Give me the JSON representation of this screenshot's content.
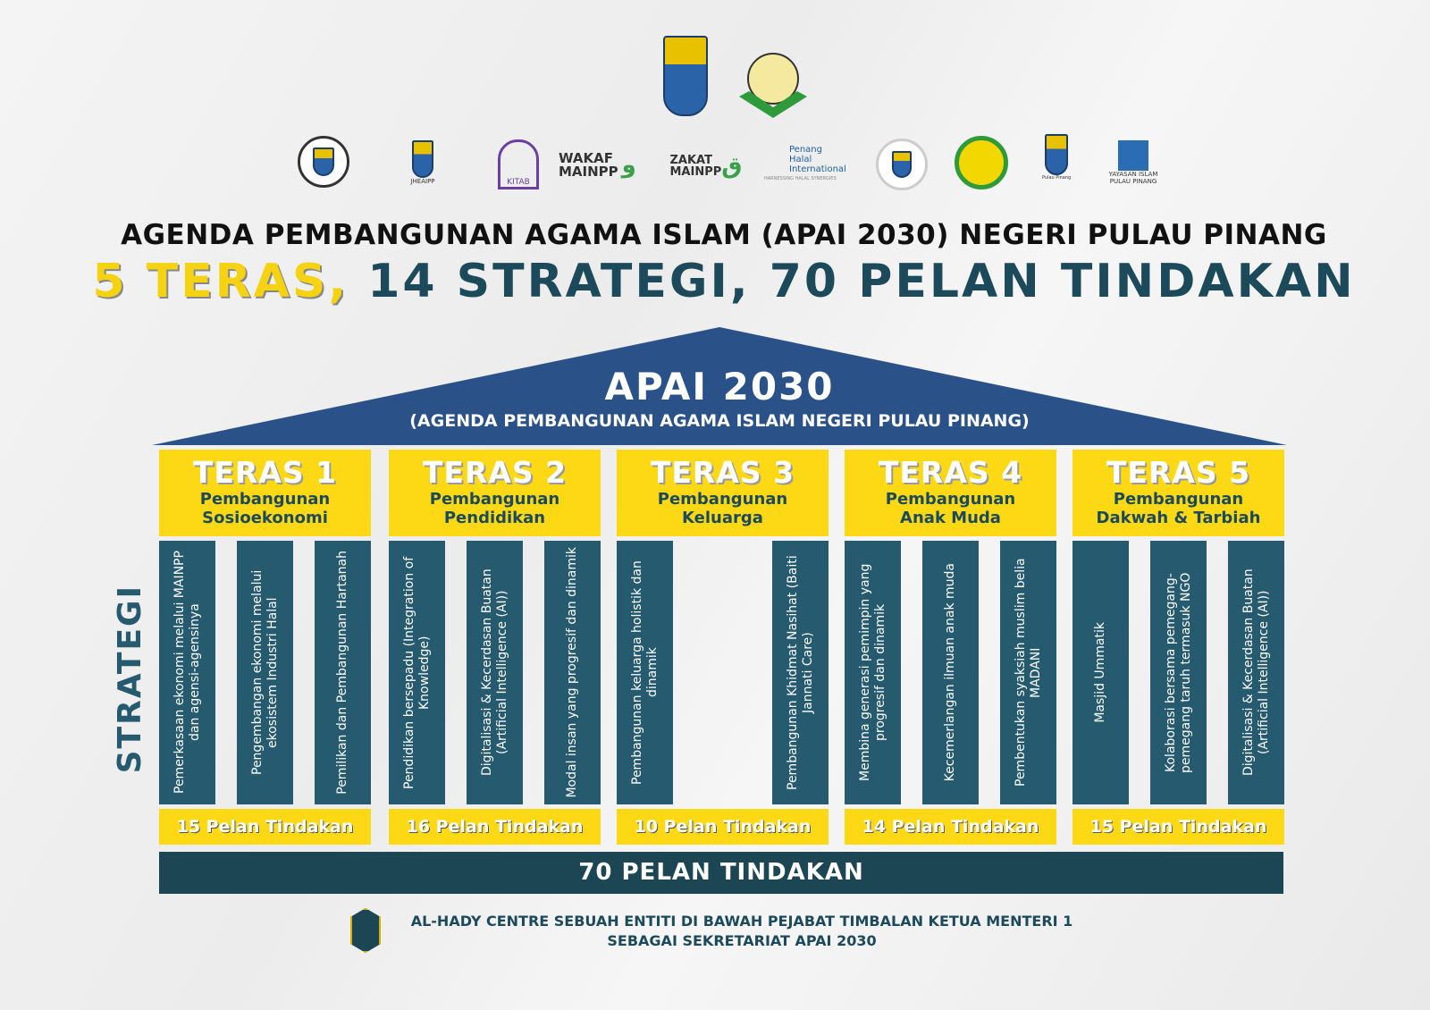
{
  "logos": {
    "top": [
      "Penang state crest",
      "Majlis Agama Islam Pulau Pinang"
    ],
    "row": [
      "Pejabat Timbalan Ketua Menteri (I) Pulau Pinang",
      "Jabatan Hal Ehwal Agama Islam Pulau Pinang",
      "KITAB",
      "WAKAF MAINPP",
      "ZAKAT MAINPP",
      "Penang Halal International",
      "HARNESSING HALAL SYNERGIES",
      "Jabatan Mufti",
      "Majlis seal",
      "Jabatan Kehakiman Syariah Pulau Pinang",
      "YAYASAN ISLAM PULAU PINANG"
    ]
  },
  "headline": "AGENDA PEMBANGUNAN AGAMA ISLAM (APAI 2030) NEGERI PULAU PINANG",
  "subheadline": {
    "teras": "5 TERAS,",
    "strategi": "14 STRATEGI,",
    "pelan": "70 PELAN TINDAKAN"
  },
  "roof": {
    "title": "APAI 2030",
    "subtitle": "(AGENDA PEMBANGUNAN AGAMA ISLAM NEGERI PULAU PINANG)"
  },
  "side_label": "STRATEGI",
  "colors": {
    "navy": "#2b5288",
    "yellow": "#fdd915",
    "teal": "#265a6e",
    "dark_teal": "#1c4654"
  },
  "teras": [
    {
      "title": "TERAS 1",
      "subtitle": [
        "Pembangunan",
        "Sosioekonomi"
      ],
      "strategies": [
        "Pemerkasaan ekonomi melalui MAINPP dan agensi-agensinya",
        "Pengembangan ekonomi melalui ekosistem Industri Halal",
        "Pemilikan dan Pembangunan Hartanah"
      ],
      "pelan": "15 Pelan Tindakan"
    },
    {
      "title": "TERAS 2",
      "subtitle": [
        "Pembangunan",
        "Pendidikan"
      ],
      "strategies": [
        "Pendidikan bersepadu (Integration of Knowledge)",
        "Digitalisasi & Kecerdasan Buatan (Artificial Intelligence (AI))",
        "Modal insan yang progresif dan dinamik"
      ],
      "pelan": "16 Pelan Tindakan"
    },
    {
      "title": "TERAS 3",
      "subtitle": [
        "Pembangunan",
        "Keluarga"
      ],
      "strategies": [
        "Pembangunan keluarga holistik dan dinamik",
        "Pembangunan Khidmat Nasihat (Baiti Jannati Care)"
      ],
      "pelan": "10 Pelan Tindakan"
    },
    {
      "title": "TERAS 4",
      "subtitle": [
        "Pembangunan",
        "Anak Muda"
      ],
      "strategies": [
        "Membina generasi pemimpin yang progresif dan dinamik",
        "Kecemerlangan ilmuan anak muda",
        "Pembentukan syaksiah muslim belia MADANI"
      ],
      "pelan": "14 Pelan Tindakan"
    },
    {
      "title": "TERAS 5",
      "subtitle": [
        "Pembangunan",
        "Dakwah & Tarbiah"
      ],
      "strategies": [
        "Masjid Ummatik",
        "Kolaborasi bersama pemegang-pemegang taruh termasuk NGO",
        "Digitalisasi & Kecerdasan Buatan (Artificial Intelligence (AI))"
      ],
      "pelan": "15 Pelan Tindakan"
    }
  ],
  "total": "70 PELAN TINDAKAN",
  "footer": {
    "logo": "Al-Hady CENTRE",
    "line1": "AL-HADY CENTRE SEBUAH ENTITI DI BAWAH PEJABAT TIMBALAN KETUA MENTERI 1",
    "line2": "SEBAGAI SEKRETARIAT APAI 2030"
  }
}
